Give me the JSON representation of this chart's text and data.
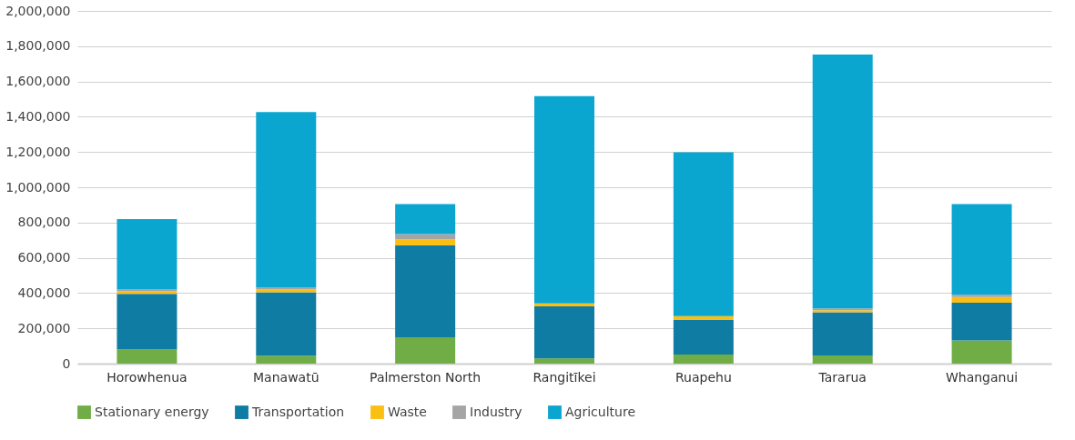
{
  "chart_data": {
    "type": "bar",
    "stacked": true,
    "categories": [
      "Horowhenua",
      "Manawatū",
      "Palmerston North",
      "Rangitīkei",
      "Ruapehu",
      "Tararua",
      "Whanganui"
    ],
    "series": [
      {
        "name": "Stationary energy",
        "color": "#70ad47",
        "values": [
          80000,
          45000,
          150000,
          30000,
          52000,
          47000,
          131000
        ]
      },
      {
        "name": "Transportation",
        "color": "#0f7ca3",
        "values": [
          315000,
          360000,
          520000,
          295000,
          195000,
          244000,
          214000
        ]
      },
      {
        "name": "Waste",
        "color": "#fbbf14",
        "values": [
          15000,
          17000,
          35000,
          16000,
          22000,
          12000,
          32000
        ]
      },
      {
        "name": "Industry",
        "color": "#a5a5a5",
        "values": [
          10000,
          10000,
          30000,
          null,
          null,
          10000,
          14000
        ]
      },
      {
        "name": "Agriculture",
        "color": "#0ba6d0",
        "values": [
          400000,
          995000,
          170000,
          1176000,
          930000,
          1440000,
          514000
        ]
      }
    ],
    "ylim": [
      0,
      2000000
    ],
    "yticks": [
      0,
      {
        "value": 200000,
        "label": "200,000"
      },
      {
        "value": 400000,
        "label": "400,000"
      },
      {
        "value": 600000,
        "label": "600,000"
      },
      {
        "value": 800000,
        "label": "800,000"
      },
      {
        "value": 1000000,
        "label": "1,000,000"
      },
      {
        "value": 1200000,
        "label": "1,200,000"
      },
      {
        "value": 1400000,
        "label": "1,400,000"
      },
      {
        "value": 1600000,
        "label": "1,600,000"
      },
      {
        "value": 1800000,
        "label": "1,800,000"
      },
      {
        "value": 2000000,
        "label": "2,000,000"
      }
    ],
    "grid": "y",
    "legend": "bottom left"
  }
}
